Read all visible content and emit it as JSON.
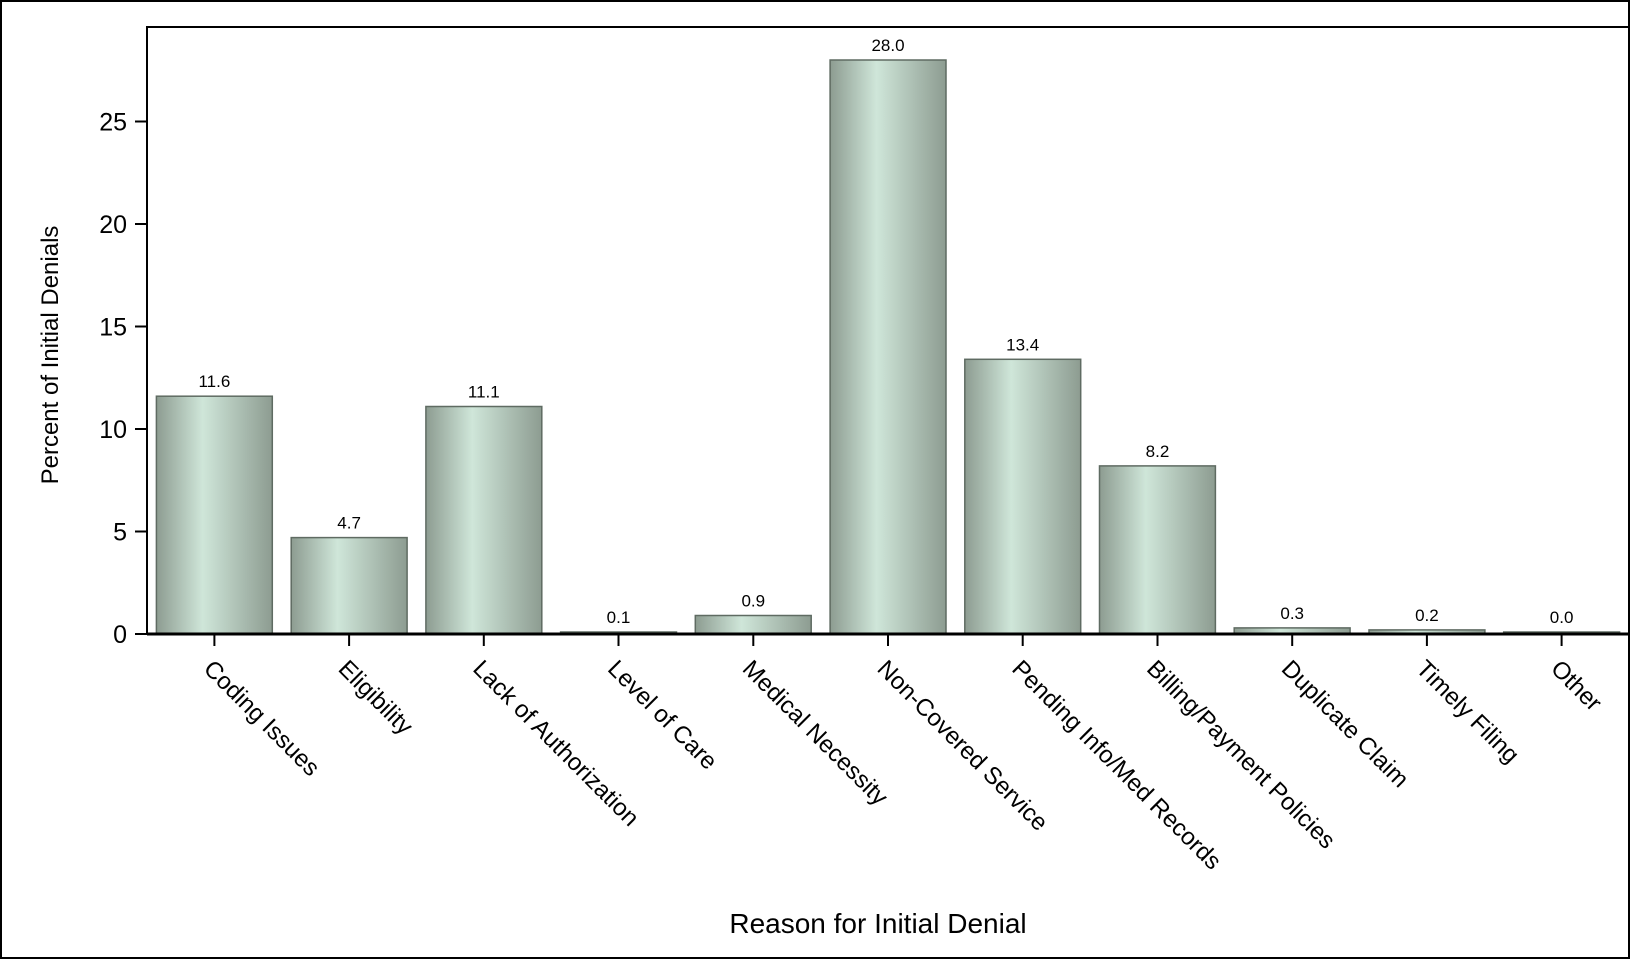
{
  "chart_data": {
    "type": "bar",
    "title": "",
    "xlabel": "Reason for Initial Denial",
    "ylabel": "Percent of Initial Denials",
    "categories": [
      "Coding Issues",
      "Eligibility",
      "Lack of Authorization",
      "Level of Care",
      "Medical Necessity",
      "Non-Covered Service",
      "Pending Info/Med Records",
      "Billing/Payment Policies",
      "Duplicate Claim",
      "Timely Filing",
      "Other"
    ],
    "values": [
      11.6,
      4.7,
      11.1,
      0.1,
      0.9,
      28.0,
      13.4,
      8.2,
      0.3,
      0.2,
      0.0
    ],
    "data_labels": [
      "11.6",
      "4.7",
      "11.1",
      "0.1",
      "0.9",
      "28.0",
      "13.4",
      "8.2",
      "0.3",
      "0.2",
      "0.0"
    ],
    "ylim": [
      0,
      28.5
    ],
    "yticks": [
      0,
      5,
      10,
      15,
      20,
      25
    ],
    "ytick_labels": [
      "0",
      "5",
      "10",
      "15",
      "20",
      "25"
    ],
    "grid": false,
    "legend": "none",
    "colors": {
      "bar_center": "#cfe6d9",
      "bar_edge": "#8d9c91",
      "bar_outline": "#5f6b62",
      "frame": "#000000",
      "text": "#000000"
    }
  }
}
